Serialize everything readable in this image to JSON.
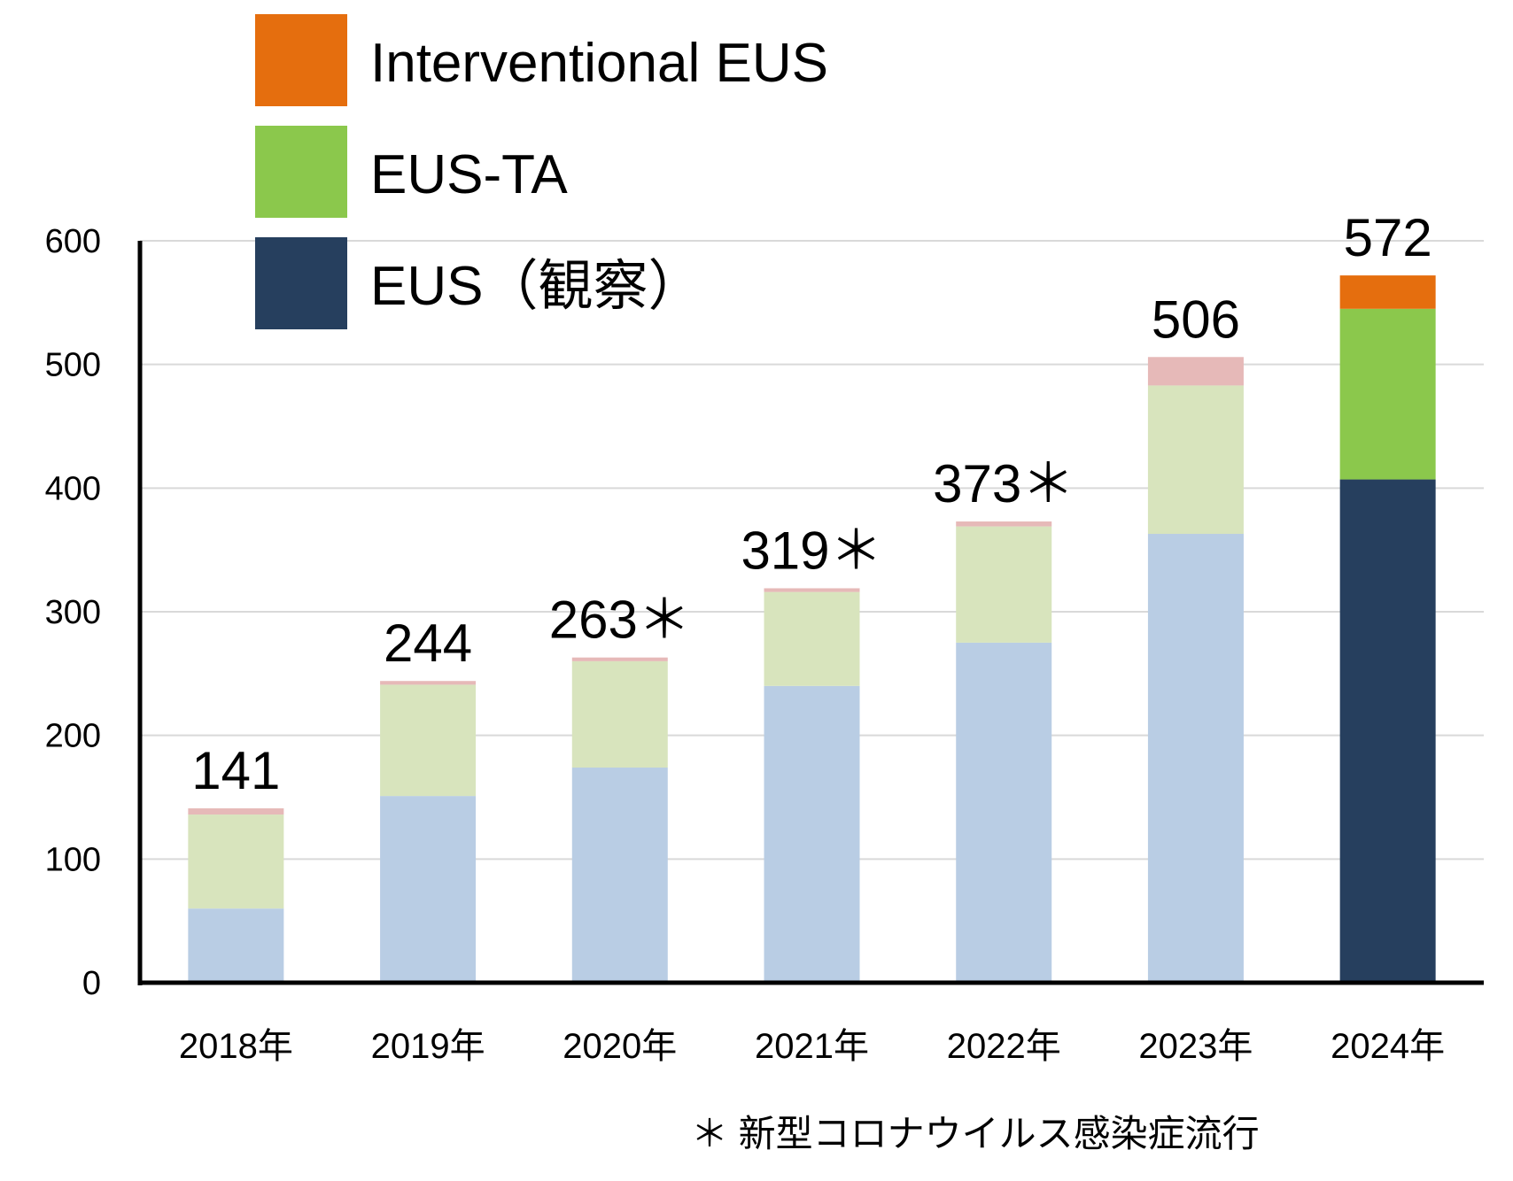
{
  "chart_data": {
    "type": "bar",
    "stacked": true,
    "categories": [
      "2018年",
      "2019年",
      "2020年",
      "2021年",
      "2022年",
      "2023年",
      "2024年"
    ],
    "series": [
      {
        "name": "EUS（観察）",
        "values": [
          60,
          151,
          174,
          240,
          275,
          363,
          407
        ],
        "color": "#b9cde4",
        "highlight_color": "#263f5e"
      },
      {
        "name": "EUS-TA",
        "values": [
          76,
          90,
          86,
          76,
          94,
          120,
          138
        ],
        "color": "#d8e4bd",
        "highlight_color": "#8bc84c"
      },
      {
        "name": "Interventional EUS",
        "values": [
          5,
          3,
          3,
          3,
          4,
          23,
          27
        ],
        "color": "#e6b9b8",
        "highlight_color": "#e56e0e"
      }
    ],
    "highlight_category_index": 6,
    "totals": [
      "141",
      "244",
      "263＊",
      "319＊",
      "373＊",
      "506",
      "572"
    ],
    "total_values": [
      141,
      244,
      263,
      319,
      373,
      506,
      572
    ],
    "yticks": [
      "0",
      "100",
      "200",
      "300",
      "400",
      "500",
      "600"
    ],
    "ylim": [
      0,
      600
    ],
    "grid": true,
    "legend_position": "top-left",
    "legend_order": [
      "Interventional EUS",
      "EUS-TA",
      "EUS（観察）"
    ],
    "footnote": "＊ 新型コロナウイルス感染症流行"
  }
}
